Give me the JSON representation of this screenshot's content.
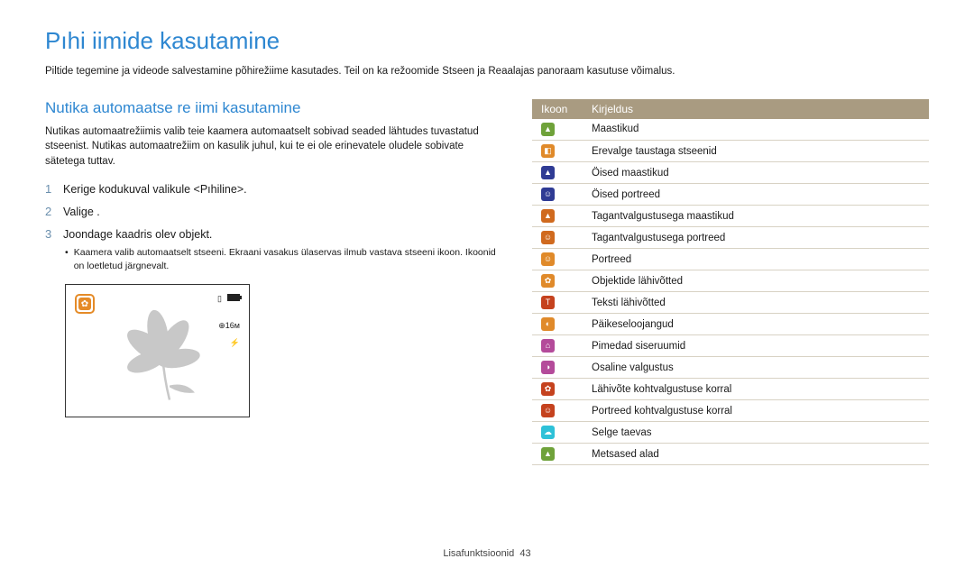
{
  "main_title": "Pıhi iimide kasutamine",
  "intro": "Piltide tegemine ja videode salvestamine põhirežiime kasutades. Teil on ka režoomide Stseen ja Reaalajas panoraam kasutuse võimalus.",
  "subheading": "Nutika automaatse re iimi kasutamine",
  "paragraph": "Nutikas automaatrežiimis valib teie kaamera automaatselt sobivad seaded lähtudes tuvastatud stseenist. Nutikas automaatrežiim on kasulik juhul, kui te ei ole erinevatele oludele sobivate sätetega tuttav.",
  "steps": {
    "1": "Kerige kodukuval valikule <Pıhiline>.",
    "2": "Valige      .",
    "3": "Joondage kaadris olev objekt."
  },
  "bullet": "Kaamera valib automaatselt stseeni. Ekraani vasakus ülaservas ilmub vastava stseeni ikoon. Ikoonid on loetletud järgnevalt.",
  "camera_overlay": {
    "top_right_card": "▯",
    "right_zoom": "⊕16м",
    "right_flash": "⚡"
  },
  "table": {
    "head_icon": "Ikoon",
    "head_desc": "Kirjeldus",
    "rows": [
      {
        "bg": "#6fa23a",
        "glyph": "▲",
        "desc": "Maastikud"
      },
      {
        "bg": "#e08a2a",
        "glyph": "◧",
        "desc": "Erevalge taustaga stseenid"
      },
      {
        "bg": "#2f3b94",
        "glyph": "▲",
        "desc": "Öised maastikud"
      },
      {
        "bg": "#2f3b94",
        "glyph": "☺",
        "desc": "Öised portreed"
      },
      {
        "bg": "#d06a1e",
        "glyph": "▲",
        "desc": "Tagantvalgustusega maastikud"
      },
      {
        "bg": "#d06a1e",
        "glyph": "☺",
        "desc": "Tagantvalgustusega portreed"
      },
      {
        "bg": "#e08a2a",
        "glyph": "☺",
        "desc": "Portreed"
      },
      {
        "bg": "#e08a2a",
        "glyph": "✿",
        "desc": "Objektide lähivõtted"
      },
      {
        "bg": "#c5421e",
        "glyph": "T",
        "desc": "Teksti lähivõtted"
      },
      {
        "bg": "#e08a2a",
        "glyph": "◐",
        "desc": "Päikeseloojangud"
      },
      {
        "bg": "#b44b9a",
        "glyph": "⌂",
        "desc": "Pimedad siseruumid"
      },
      {
        "bg": "#b44b9a",
        "glyph": "◑",
        "desc": "Osaline valgustus"
      },
      {
        "bg": "#c5421e",
        "glyph": "✿",
        "desc": "Lähivõte kohtvalgustuse korral"
      },
      {
        "bg": "#c5421e",
        "glyph": "☺",
        "desc": "Portreed kohtvalgustuse korral"
      },
      {
        "bg": "#2ec1d8",
        "glyph": "☁",
        "desc": "Selge taevas"
      },
      {
        "bg": "#6fa23a",
        "glyph": "▲",
        "desc": "Metsased alad"
      }
    ]
  },
  "footer_label": "Lisafunktsioonid",
  "footer_page": "43"
}
